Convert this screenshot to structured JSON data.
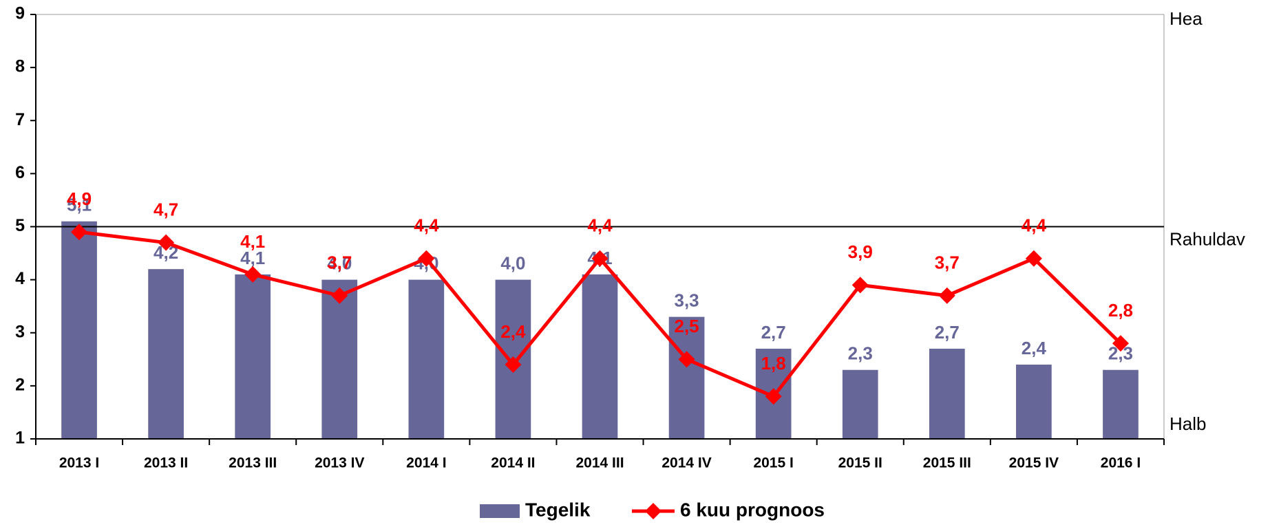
{
  "chart_data": {
    "type": "bar_line",
    "categories": [
      "2013 I",
      "2013 II",
      "2013 III",
      "2013 IV",
      "2014 I",
      "2014 II",
      "2014 III",
      "2014 IV",
      "2015 I",
      "2015 II",
      "2015 III",
      "2015 IV",
      "2016 I"
    ],
    "series": [
      {
        "name": "Tegelik",
        "type": "bar",
        "color": "#666699",
        "values": [
          5.1,
          4.2,
          4.1,
          4.0,
          4.0,
          4.0,
          4.1,
          3.3,
          2.7,
          2.3,
          2.7,
          2.4,
          2.3
        ],
        "value_labels": [
          "5,1",
          "4,2",
          "4,1",
          "4,0",
          "4,0",
          "4,0",
          "4,1",
          "3,3",
          "2,7",
          "2,3",
          "2,7",
          "2,4",
          "2,3"
        ]
      },
      {
        "name": "6 kuu prognoos",
        "type": "line",
        "color": "#ff0000",
        "values": [
          4.9,
          4.7,
          4.1,
          3.7,
          4.4,
          2.4,
          4.4,
          2.5,
          1.8,
          3.9,
          3.7,
          4.4,
          2.8
        ],
        "value_labels": [
          "4,9",
          "4,7",
          "4,1",
          "3,7",
          "4,4",
          "2,4",
          "4,4",
          "2,5",
          "1,8",
          "3,9",
          "3,7",
          "4,4",
          "2,8"
        ]
      }
    ],
    "ylim": [
      1,
      9
    ],
    "yticks": [
      1,
      2,
      3,
      4,
      5,
      6,
      7,
      8,
      9
    ],
    "reference_line": 5,
    "annotations": [
      {
        "text": "Hea",
        "y": 9
      },
      {
        "text": "Rahuldav",
        "y": 5
      },
      {
        "text": "Halb",
        "y": 1
      }
    ],
    "legend": "bottom"
  }
}
